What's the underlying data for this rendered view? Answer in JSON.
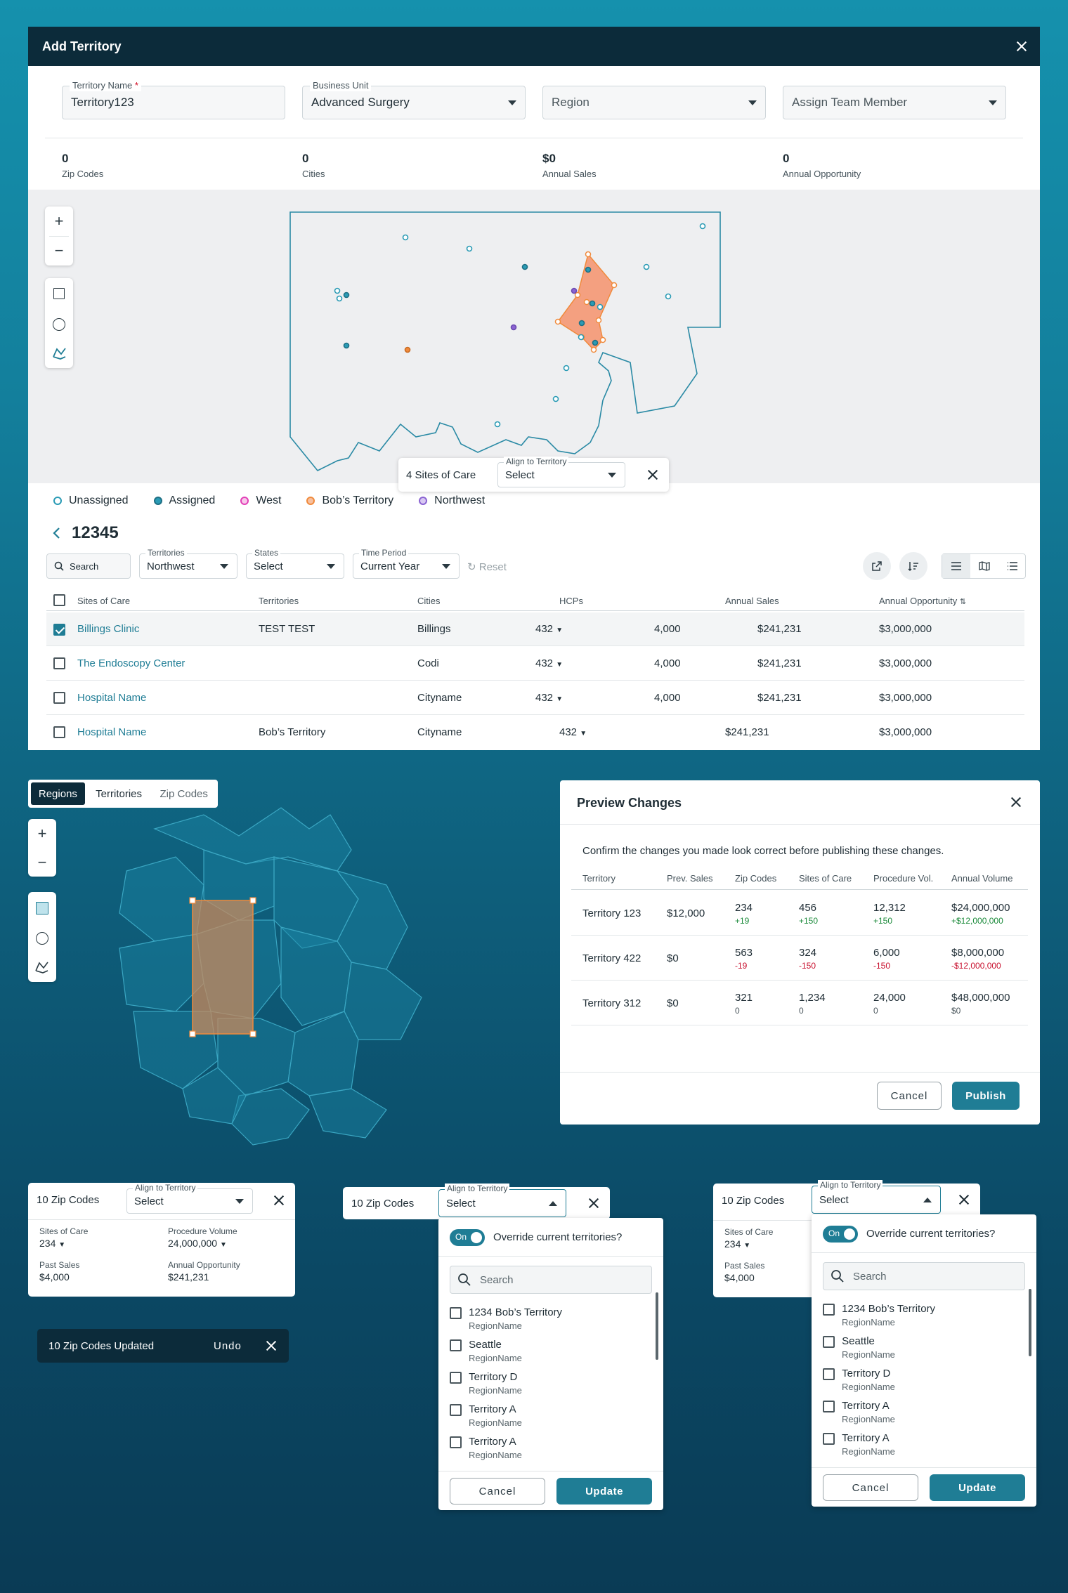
{
  "modal": {
    "title": "Add Territory",
    "fields": {
      "territory_name_label": "Territory Name",
      "territory_name_required": "*",
      "territory_name_value": "Territory123",
      "business_unit_label": "Business Unit",
      "business_unit_value": "Advanced Surgery",
      "region_placeholder": "Region",
      "team_member_placeholder": "Assign Team Member"
    },
    "stats": [
      {
        "value": "0",
        "label": "Zip Codes"
      },
      {
        "value": "0",
        "label": "Cities"
      },
      {
        "value": "$0",
        "label": "Annual Sales"
      },
      {
        "value": "0",
        "label": "Annual Opportunity"
      }
    ],
    "map_popup": {
      "count_text": "4 Sites of Care",
      "align_label": "Align to Territory",
      "select_value": "Select"
    },
    "legend": [
      {
        "label": "Unassigned",
        "color": "#2a9bb5",
        "filled": false
      },
      {
        "label": "Assigned",
        "color": "#2a9bb5",
        "filled": true
      },
      {
        "label": "West",
        "color": "#e23fb7",
        "filled": false
      },
      {
        "label": "Bob’s Territory",
        "color": "#f08a3c",
        "filled": false
      },
      {
        "label": "Northwest",
        "color": "#8a63d2",
        "filled": false
      }
    ],
    "zip_title": "12345",
    "filters": {
      "search_placeholder": "Search",
      "territories_label": "Territories",
      "territories_value": "Northwest",
      "states_label": "States",
      "states_value": "Select",
      "time_label": "Time Period",
      "time_value": "Current Year",
      "reset": "Reset"
    },
    "table": {
      "headers": [
        "Sites of Care",
        "Territories",
        "Cities",
        "HCPs",
        "Annual Sales",
        "Annual Opportunity"
      ],
      "rows": [
        {
          "site": "Billings Clinic",
          "territory": "TEST TEST",
          "city": "Billings",
          "hcps": "432",
          "n": "4,000",
          "sales": "$241,231",
          "opp": "$3,000,000",
          "checked": true
        },
        {
          "site": "The Endoscopy Center",
          "territory": "",
          "city": "Codi",
          "hcps": "432",
          "n": "4,000",
          "sales": "$241,231",
          "opp": "$3,000,000",
          "checked": false
        },
        {
          "site": "Hospital Name",
          "territory": "",
          "city": "Cityname",
          "hcps": "432",
          "n": "4,000",
          "sales": "$241,231",
          "opp": "$3,000,000",
          "checked": false
        },
        {
          "site": "Hospital Name",
          "territory": "Bob’s Territory",
          "city": "Cityname",
          "hcps": "432",
          "n": "",
          "sales": "$241,231",
          "opp": "$3,000,000",
          "checked": false
        }
      ]
    }
  },
  "region_tabs": [
    "Regions",
    "Territories",
    "Zip Codes"
  ],
  "preview": {
    "title": "Preview Changes",
    "intro": "Confirm the changes you made look correct before publishing these changes.",
    "headers": [
      "Territory",
      "Prev. Sales",
      "Zip Codes",
      "Sites of Care",
      "Procedure Vol.",
      "Annual Volume"
    ],
    "rows": [
      {
        "territory": "Territory 123",
        "prev": "$12,000",
        "zip": "234",
        "zip_d": "+19",
        "sites": "456",
        "sites_d": "+150",
        "proc": "12,312",
        "proc_d": "+150",
        "annual": "$24,000,000",
        "annual_d": "+$12,000,000",
        "tone": "pos"
      },
      {
        "territory": "Territory 422",
        "prev": "$0",
        "zip": "563",
        "zip_d": "-19",
        "sites": "324",
        "sites_d": "-150",
        "proc": "6,000",
        "proc_d": "-150",
        "annual": "$8,000,000",
        "annual_d": "-$12,000,000",
        "tone": "neg"
      },
      {
        "territory": "Territory 312",
        "prev": "$0",
        "zip": "321",
        "zip_d": "0",
        "sites": "1,234",
        "sites_d": "0",
        "proc": "24,000",
        "proc_d": "0",
        "annual": "$48,000,000",
        "annual_d": "$0",
        "tone": "zer"
      }
    ],
    "cancel": "Cancel",
    "publish": "Publish"
  },
  "zip_card": {
    "count": "10 Zip Codes",
    "align_label": "Align to Territory",
    "select_value": "Select",
    "sites_label": "Sites of Care",
    "sites_value": "234",
    "proc_label": "Procedure Volume",
    "proc_value": "24,000,000",
    "past_label": "Past Sales",
    "past_value": "$4,000",
    "opp_label": "Annual Opportunity",
    "opp_value": "$241,231"
  },
  "toast": {
    "text": "10 Zip Codes Updated",
    "undo": "Undo"
  },
  "dropdown": {
    "toggle_text": "On",
    "override": "Override current territories?",
    "search_placeholder": "Search",
    "options": [
      {
        "name": "1234 Bob’s Territory",
        "sub": "RegionName"
      },
      {
        "name": "Seattle",
        "sub": "RegionName"
      },
      {
        "name": "Territory D",
        "sub": "RegionName"
      },
      {
        "name": "Territory A",
        "sub": "RegionName"
      },
      {
        "name": "Territory A",
        "sub": "RegionName"
      }
    ],
    "cancel": "Cancel",
    "update": "Update"
  }
}
